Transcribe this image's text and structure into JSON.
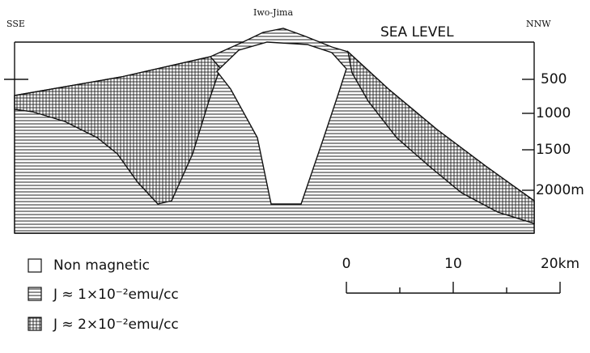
{
  "header": {
    "left": "SSE",
    "center": "Iwo-Jima",
    "right": "NNW",
    "sea_level": "SEA LEVEL"
  },
  "depth_labels": [
    "500",
    "1000",
    "1500",
    "2000m"
  ],
  "legend": [
    "Non magnetic",
    "J ≈ 1×10⁻²emu/cc",
    "J ≈ 2×10⁻²emu/cc"
  ],
  "scale": [
    "0",
    "10",
    "20km"
  ]
}
